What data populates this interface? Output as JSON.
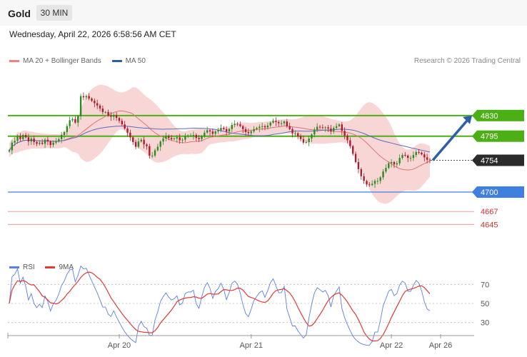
{
  "header": {
    "symbol": "Gold",
    "timeframe": "30 MIN"
  },
  "datetime": "Wednesday, April 22, 2026 6:58:56 AM CET",
  "legend": {
    "bb_label": "MA 20 + Bollinger Bands",
    "ma50_label": "MA 50"
  },
  "credit": "Research © 2026 Trading Central",
  "rsi_legend": {
    "rsi_label": "RSI",
    "ma_label": "9MA"
  },
  "colors": {
    "up": "#2b8a1e",
    "down": "#b2182b",
    "band": "#f9d6d6",
    "ma20": "#e57373",
    "ma50": "#5c6bc0",
    "green_level": "#4caf15",
    "blue_level": "#3f7fe0",
    "red_level": "#ef9a9a",
    "arrow": "#2f5ea8",
    "rsi": "#5b7fe6",
    "rsi_ma": "#e53935"
  },
  "chart_data": [
    {
      "type": "line",
      "title": "",
      "series": [
        {
          "name": "Gold",
          "kind": "candlestick"
        }
      ],
      "levels": [
        {
          "value": 4830,
          "label": "4830",
          "style": "green"
        },
        {
          "value": 4795,
          "label": "4795",
          "style": "green"
        },
        {
          "value": 4754,
          "label": "4754",
          "style": "current"
        },
        {
          "value": 4700,
          "label": "4700",
          "style": "blue"
        },
        {
          "value": 4667,
          "label": "4667",
          "style": "red"
        },
        {
          "value": 4645,
          "label": "4645",
          "style": "red"
        }
      ],
      "ylim": [
        4620,
        4905
      ],
      "x_tick_labels": [
        "Apr 20",
        "Apr 21",
        "Apr 22",
        "Apr 26"
      ],
      "closes": [
        4771,
        4784,
        4787,
        4795,
        4790,
        4797,
        4793,
        4786,
        4791,
        4785,
        4782,
        4784,
        4782,
        4789,
        4786,
        4780,
        4784,
        4786,
        4790,
        4797,
        4802,
        4812,
        4822,
        4824,
        4818,
        4829,
        4863,
        4861,
        4863,
        4859,
        4855,
        4851,
        4847,
        4842,
        4836,
        4836,
        4830,
        4828,
        4831,
        4826,
        4821,
        4815,
        4808,
        4801,
        4793,
        4785,
        4777,
        4786,
        4789,
        4781,
        4778,
        4762,
        4762,
        4771,
        4777,
        4786,
        4791,
        4795,
        4792,
        4790,
        4791,
        4793,
        4788,
        4789,
        4795,
        4796,
        4796,
        4797,
        4792,
        4790,
        4795,
        4801,
        4805,
        4803,
        4799,
        4803,
        4805,
        4809,
        4807,
        4803,
        4807,
        4814,
        4816,
        4815,
        4812,
        4807,
        4802,
        4800,
        4803,
        4807,
        4809,
        4811,
        4812,
        4810,
        4813,
        4818,
        4821,
        4819,
        4817,
        4817,
        4820,
        4812,
        4807,
        4800,
        4800,
        4795,
        4790,
        4784,
        4785,
        4791,
        4798,
        4806,
        4811,
        4810,
        4809,
        4810,
        4808,
        4803,
        4809,
        4812,
        4815,
        4804,
        4796,
        4788,
        4778,
        4765,
        4751,
        4739,
        4727,
        4719,
        4713,
        4712,
        4714,
        4719,
        4719,
        4725,
        4735,
        4741,
        4749,
        4751,
        4747,
        4749,
        4758,
        4763,
        4762,
        4758,
        4758,
        4763,
        4768,
        4767,
        4764,
        4759,
        4755,
        4754
      ]
    },
    {
      "type": "line",
      "title": "",
      "series": [
        {
          "name": "RSI"
        },
        {
          "name": "9MA"
        }
      ],
      "y_ticks": [
        70,
        50,
        30
      ],
      "ylim": [
        20,
        80
      ]
    }
  ]
}
